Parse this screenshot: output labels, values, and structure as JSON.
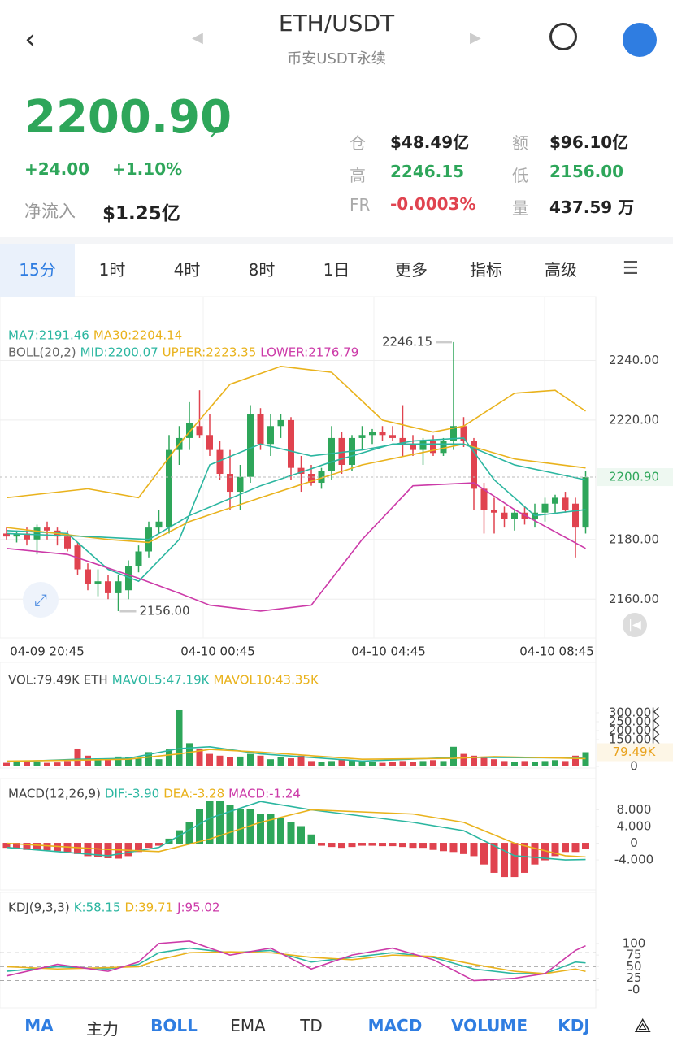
{
  "header": {
    "title": "ETH/USDT",
    "subtitle": "币安USDT永续"
  },
  "ticker": {
    "price": "2200.90",
    "change": "+24.00",
    "change_pct": "+1.10%",
    "netflow_label": "净流入",
    "netflow": "$1.25亿",
    "stats": [
      {
        "label": "仓",
        "value": "$48.49亿"
      },
      {
        "label": "额",
        "value": "$96.10亿"
      },
      {
        "label": "高",
        "value": "2246.15"
      },
      {
        "label": "低",
        "value": "2156.00"
      },
      {
        "label": "FR",
        "value": "-0.0003%"
      },
      {
        "label": "量",
        "value": "437.59 万"
      }
    ]
  },
  "tabs": [
    "15分",
    "1时",
    "4时",
    "8时",
    "1日",
    "更多",
    "指标",
    "高级"
  ],
  "price_panel": {
    "type": "candlestick",
    "legend": [
      "MA7:2191.46",
      "MA30:2204.14",
      "BOLL(20,2)",
      "MID:2200.07",
      "UPPER:2223.35",
      "LOWER:2176.79"
    ],
    "ylim": [
      2147,
      2260
    ],
    "yticks": [
      {
        "value": 2240,
        "label": "2240.00"
      },
      {
        "value": 2220,
        "label": "2220.00"
      },
      {
        "value": 2180,
        "label": "2180.00"
      },
      {
        "value": 2160,
        "label": "2160.00"
      }
    ],
    "last": {
      "value": 2200.9,
      "label": "2200.90"
    },
    "high_label": "2246.15",
    "low_label": "2156.00",
    "times": [
      "04-09 20:45",
      "04-10 00:45",
      "04-10 04:45",
      "04-10 08:45"
    ],
    "candles": [
      [
        2182,
        2184,
        2180,
        2181
      ],
      [
        2181,
        2183,
        2179,
        2182
      ],
      [
        2182,
        2184,
        2178,
        2180
      ],
      [
        2180,
        2185,
        2175,
        2184
      ],
      [
        2184,
        2186,
        2180,
        2183
      ],
      [
        2183,
        2184,
        2178,
        2181
      ],
      [
        2181,
        2183,
        2176,
        2177
      ],
      [
        2178,
        2179,
        2168,
        2170
      ],
      [
        2170,
        2172,
        2163,
        2165
      ],
      [
        2165,
        2170,
        2161,
        2166
      ],
      [
        2166,
        2168,
        2160,
        2162
      ],
      [
        2162,
        2168,
        2156,
        2166
      ],
      [
        2163,
        2173,
        2160,
        2171
      ],
      [
        2171,
        2178,
        2169,
        2176
      ],
      [
        2176,
        2186,
        2174,
        2184
      ],
      [
        2184,
        2190,
        2182,
        2186
      ],
      [
        2184,
        2215,
        2182,
        2210
      ],
      [
        2210,
        2218,
        2205,
        2214
      ],
      [
        2214,
        2226,
        2210,
        2219
      ],
      [
        2218,
        2230,
        2214,
        2215
      ],
      [
        2215,
        2222,
        2208,
        2210
      ],
      [
        2210,
        2213,
        2200,
        2202
      ],
      [
        2202,
        2210,
        2190,
        2196
      ],
      [
        2196,
        2205,
        2190,
        2201
      ],
      [
        2201,
        2225,
        2199,
        2222
      ],
      [
        2222,
        2224,
        2210,
        2212
      ],
      [
        2212,
        2222,
        2208,
        2218
      ],
      [
        2218,
        2222,
        2214,
        2220
      ],
      [
        2220,
        2221,
        2200,
        2204
      ],
      [
        2204,
        2208,
        2196,
        2202
      ],
      [
        2202,
        2205,
        2198,
        2199
      ],
      [
        2199,
        2204,
        2197,
        2203
      ],
      [
        2203,
        2218,
        2200,
        2214
      ],
      [
        2214,
        2216,
        2202,
        2205
      ],
      [
        2205,
        2215,
        2203,
        2214
      ],
      [
        2214,
        2218,
        2210,
        2215
      ],
      [
        2215,
        2217,
        2212,
        2216
      ],
      [
        2216,
        2218,
        2213,
        2215
      ],
      [
        2215,
        2218,
        2213,
        2214
      ],
      [
        2214,
        2225,
        2208,
        2212
      ],
      [
        2212,
        2215,
        2208,
        2210
      ],
      [
        2210,
        2214,
        2205,
        2213
      ],
      [
        2213,
        2215,
        2208,
        2209
      ],
      [
        2209,
        2214,
        2208,
        2213
      ],
      [
        2213,
        2246.15,
        2210,
        2218
      ],
      [
        2218,
        2221,
        2211,
        2213
      ],
      [
        2213,
        2214,
        2190,
        2197
      ],
      [
        2197,
        2199,
        2182,
        2190
      ],
      [
        2190,
        2194,
        2182,
        2189
      ],
      [
        2189,
        2191,
        2184,
        2187
      ],
      [
        2187,
        2190,
        2183,
        2189
      ],
      [
        2189,
        2191,
        2185,
        2187
      ],
      [
        2187,
        2192,
        2184,
        2189
      ],
      [
        2189,
        2194,
        2186,
        2192
      ],
      [
        2192,
        2195,
        2189,
        2194
      ],
      [
        2194,
        2196,
        2189,
        2190
      ],
      [
        2192,
        2194,
        2174,
        2184
      ],
      [
        2184,
        2203,
        2182,
        2200.9
      ]
    ],
    "lines": [
      {
        "name": "MA7",
        "color": "#2bb6a0",
        "x": [
          0,
          6,
          10,
          13,
          17,
          20,
          25,
          30,
          35,
          40,
          45,
          48,
          52,
          57
        ],
        "values": [
          2183,
          2182,
          2170,
          2166,
          2180,
          2205,
          2212,
          2208,
          2210,
          2213,
          2214,
          2200,
          2188,
          2190
        ]
      },
      {
        "name": "MA30",
        "color": "#e9b21c",
        "x": [
          0,
          10,
          14,
          18,
          25,
          35,
          45,
          50,
          57
        ],
        "values": [
          2184,
          2180,
          2179,
          2186,
          2194,
          2205,
          2212,
          2207,
          2204
        ]
      },
      {
        "name": "UPPER",
        "color": "#e9b21c",
        "x": [
          0,
          8,
          13,
          17,
          22,
          27,
          32,
          37,
          42,
          45,
          50,
          54,
          57
        ],
        "values": [
          2194,
          2197,
          2194,
          2212,
          2232,
          2238,
          2236,
          2220,
          2216,
          2218,
          2229,
          2230,
          2223
        ]
      },
      {
        "name": "MID",
        "color": "#2bb6a0",
        "x": [
          0,
          8,
          14,
          18,
          25,
          32,
          38,
          45,
          50,
          57
        ],
        "values": [
          2182,
          2181,
          2180,
          2188,
          2198,
          2206,
          2212,
          2212,
          2205,
          2200
        ]
      },
      {
        "name": "LOWER",
        "color": "#cc3aa8",
        "x": [
          0,
          6,
          13,
          17,
          20,
          25,
          30,
          35,
          40,
          46,
          50,
          57
        ],
        "values": [
          2177,
          2175,
          2167,
          2162,
          2158,
          2156,
          2158,
          2180,
          2198,
          2199,
          2190,
          2177
        ]
      }
    ]
  },
  "volume_panel": {
    "type": "bar",
    "legend": [
      "VOL:79.49K ETH",
      "MAVOL5:47.19K",
      "MAVOL10:43.35K"
    ],
    "ylim": [
      0,
      377
    ],
    "yticks": [
      {
        "value": 300,
        "label": "300.00K"
      },
      {
        "value": 250,
        "label": "250.00K"
      },
      {
        "value": 200,
        "label": "200.00K"
      },
      {
        "value": 150,
        "label": "150.00K"
      },
      0
    ],
    "values": [
      20,
      25,
      30,
      25,
      20,
      22,
      30,
      100,
      60,
      45,
      40,
      55,
      50,
      45,
      80,
      40,
      95,
      318,
      130,
      100,
      70,
      60,
      50,
      55,
      70,
      60,
      40,
      50,
      45,
      60,
      30,
      25,
      30,
      40,
      35,
      30,
      25,
      20,
      25,
      30,
      25,
      30,
      35,
      30,
      110,
      70,
      60,
      55,
      40,
      30,
      25,
      30,
      25,
      30,
      35,
      30,
      60,
      79.49
    ],
    "last_label": "79.49K",
    "lines": [
      {
        "name": "MAVOL5",
        "color": "#2bb6a0",
        "x": [
          0,
          7,
          12,
          17,
          20,
          25,
          35,
          44,
          48,
          57
        ],
        "values": [
          25,
          40,
          45,
          100,
          110,
          70,
          30,
          50,
          50,
          47.19
        ]
      },
      {
        "name": "MAVOL10",
        "color": "#e9b21c",
        "x": [
          0,
          7,
          12,
          17,
          20,
          25,
          35,
          44,
          48,
          57
        ],
        "values": [
          30,
          35,
          40,
          70,
          95,
          80,
          40,
          45,
          55,
          43.35
        ]
      }
    ]
  },
  "macd_panel": {
    "type": "bar",
    "legend": [
      "MACD(12,26,9)",
      "DIF:-3.90",
      "DEA:-3.28",
      "MACD:-1.24"
    ],
    "ylim": [
      -11.2,
      15.5
    ],
    "yticks": [
      {
        "value": 8,
        "label": "8.000"
      },
      {
        "value": 4,
        "label": "4.000"
      },
      0,
      {
        "value": -4,
        "label": "-4.000"
      }
    ],
    "values": [
      -1,
      -1.2,
      -1.5,
      -1.5,
      -1.6,
      -1.8,
      -2,
      -2.5,
      -3,
      -3.2,
      -3.5,
      -3.6,
      -3,
      -2,
      -1,
      -0.5,
      1,
      3,
      5,
      8,
      10,
      10,
      9,
      8,
      8,
      7,
      7,
      6,
      5,
      4,
      2,
      -0.5,
      -0.8,
      -1,
      -0.8,
      -0.5,
      -0.5,
      -0.6,
      -0.6,
      -0.8,
      -1,
      -1,
      -1.5,
      -1.8,
      -2,
      -2.5,
      -3,
      -5,
      -7,
      -8,
      -8,
      -7,
      -5,
      -4,
      -3,
      -2,
      -2,
      -1.24
    ],
    "lines": [
      {
        "name": "DIF",
        "color": "#2bb6a0",
        "x": [
          0,
          10,
          15,
          20,
          25,
          30,
          40,
          45,
          50,
          55,
          57
        ],
        "values": [
          -1,
          -3,
          -1,
          6,
          10,
          8,
          5,
          3,
          -3,
          -4,
          -3.9
        ]
      },
      {
        "name": "DEA",
        "color": "#e9b21c",
        "x": [
          0,
          10,
          15,
          20,
          25,
          30,
          40,
          45,
          50,
          55,
          57
        ],
        "values": [
          0,
          -1.5,
          -2,
          1,
          5,
          8,
          7,
          5,
          0,
          -3,
          -3.28
        ]
      }
    ]
  },
  "kdj_panel": {
    "type": "line",
    "legend": [
      "KDJ(9,3,3)",
      "K:58.15",
      "D:39.71",
      "J:95.02"
    ],
    "ylim": [
      -38.6,
      154
    ],
    "yticks": [
      100,
      75,
      50,
      25,
      {
        "value": 0,
        "label": "-0"
      }
    ],
    "guides": [
      80,
      50,
      20
    ],
    "lines": [
      {
        "name": "K",
        "color": "#2bb6a0",
        "x": [
          0,
          5,
          10,
          13,
          15,
          18,
          22,
          26,
          30,
          34,
          38,
          42,
          46,
          50,
          53,
          56,
          57
        ],
        "values": [
          40,
          50,
          45,
          55,
          80,
          90,
          80,
          85,
          60,
          70,
          80,
          70,
          45,
          35,
          35,
          60,
          58.15
        ]
      },
      {
        "name": "D",
        "color": "#e9b21c",
        "x": [
          0,
          5,
          10,
          13,
          15,
          18,
          22,
          26,
          30,
          34,
          38,
          42,
          46,
          50,
          53,
          56,
          57
        ],
        "values": [
          50,
          45,
          48,
          50,
          65,
          80,
          82,
          80,
          70,
          65,
          75,
          72,
          55,
          40,
          35,
          45,
          39.71
        ]
      },
      {
        "name": "J",
        "color": "#cc3aa8",
        "x": [
          0,
          5,
          10,
          13,
          15,
          18,
          22,
          26,
          30,
          34,
          38,
          42,
          46,
          50,
          53,
          56,
          57
        ],
        "values": [
          30,
          55,
          40,
          60,
          100,
          105,
          75,
          90,
          45,
          75,
          90,
          65,
          20,
          25,
          35,
          85,
          95.02
        ]
      }
    ]
  },
  "bottom_bar": [
    {
      "label": "MA",
      "active": true
    },
    {
      "label": "主力",
      "active": false
    },
    {
      "label": "BOLL",
      "active": true
    },
    {
      "label": "EMA",
      "active": false
    },
    {
      "label": "TD",
      "active": false
    },
    {
      "label": "MACD",
      "active": true
    },
    {
      "label": "VOLUME",
      "active": true
    },
    {
      "label": "KDJ",
      "active": true
    }
  ]
}
